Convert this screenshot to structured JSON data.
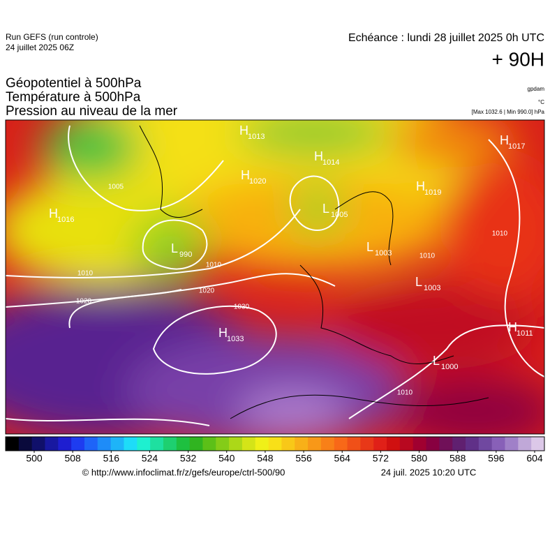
{
  "header": {
    "run": "Run GEFS (run controle)",
    "run_date": "24 juillet 2025 06Z",
    "valid": "Echéance : lundi 28 juillet 2025 0h UTC",
    "lead": "+ 90H"
  },
  "titles": [
    "Géopotentiel à 500hPa",
    "Température à 500hPa",
    "Pression au niveau de la mer"
  ],
  "units": {
    "geopotential": "gpdam",
    "temperature": "°C",
    "pressure": "[Max 1032.6 | Min 990.0] hPa"
  },
  "centers": [
    {
      "letter": "H",
      "value": 1013
    },
    {
      "letter": "H",
      "value": 1014
    },
    {
      "letter": "H",
      "value": 1020
    },
    {
      "letter": "L",
      "value": 1005
    },
    {
      "letter": "L",
      "value": 990
    },
    {
      "letter": "H",
      "value": 1016
    },
    {
      "letter": "H",
      "value": 1019
    },
    {
      "letter": "H",
      "value": 1017
    },
    {
      "letter": "L",
      "value": 1003
    },
    {
      "letter": "L",
      "value": 1003
    },
    {
      "letter": "H",
      "value": 1033
    },
    {
      "letter": "H",
      "value": 1011
    },
    {
      "letter": "L",
      "value": 1000
    }
  ],
  "isobar_labels": [
    1010,
    1020,
    1020,
    1010,
    1030,
    1010,
    1010,
    1010,
    1005
  ],
  "colorbar": {
    "ticks": [
      500,
      508,
      516,
      524,
      532,
      540,
      548,
      556,
      564,
      572,
      580,
      588,
      596,
      604
    ]
  },
  "footer": {
    "source": "© http://www.infoclimat.fr/z/gefs/europe/ctrl-500/90",
    "created": "24 juil. 2025 10:20 UTC"
  }
}
